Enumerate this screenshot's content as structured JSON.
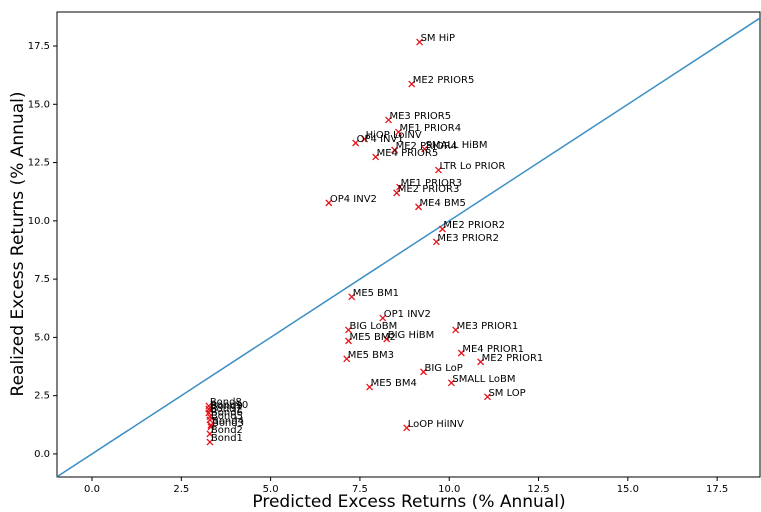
{
  "chart_data": {
    "type": "scatter",
    "xlabel": "Predicted Excess Returns (% Annual)",
    "ylabel": "Realized Excess Returns (% Annual)",
    "labels": [
      "SM HiP",
      "ME2 PRIOR5",
      "ME3 PRIOR5",
      "ME1 PRIOR4",
      "HiOP LoINV",
      "OP4 INV1",
      "ME2 PRIOR4",
      "SMALL HiBM",
      "ME4 PRIOR5",
      "LTR Lo PRIOR",
      "ME1 PRIOR3",
      "ME2 PRIOR3",
      "OP4 INV2",
      "ME4 BM5",
      "ME2 PRIOR2",
      "ME3 PRIOR2",
      "ME5 BM1",
      "OP1 INV2",
      "BIG LoBM",
      "BIG HiBM",
      "ME3 PRIOR1",
      "ME4 PRIOR1",
      "ME2 PRIOR1",
      "ME5 BM2",
      "ME5 BM3",
      "BIG LoP",
      "ME5 BM4",
      "SMALL LoBM",
      "SM LOP",
      "LoOP HiINV",
      "Bond8",
      "Bond10",
      "Bond9",
      "Bond7",
      "Bond6",
      "Bond5",
      "Bond4",
      "Bond3",
      "Bond2",
      "Bond1"
    ],
    "x": [
      9.17,
      8.95,
      8.3,
      8.58,
      7.63,
      7.38,
      8.47,
      9.31,
      7.94,
      9.7,
      8.61,
      8.53,
      6.63,
      9.14,
      9.81,
      9.64,
      7.27,
      8.14,
      7.18,
      8.25,
      10.18,
      10.34,
      10.88,
      7.18,
      7.13,
      9.28,
      7.77,
      10.06,
      11.07,
      8.81,
      3.27,
      3.27,
      3.3,
      3.27,
      3.3,
      3.3,
      3.33,
      3.33,
      3.3,
      3.3
    ],
    "y": [
      17.67,
      15.87,
      14.33,
      13.81,
      13.51,
      13.34,
      13.04,
      13.08,
      12.74,
      12.18,
      11.45,
      11.2,
      10.77,
      10.6,
      9.65,
      9.1,
      6.74,
      5.83,
      5.32,
      4.93,
      5.32,
      4.33,
      3.95,
      4.85,
      4.08,
      3.52,
      2.87,
      3.05,
      2.45,
      1.12,
      2.06,
      1.93,
      1.88,
      1.76,
      1.6,
      1.46,
      1.24,
      1.16,
      0.86,
      0.51
    ],
    "color": "#e8141c",
    "diagonal": true,
    "line_color": "#3a8fc4",
    "xlim": [
      -0.98,
      18.7
    ],
    "ylim": [
      -0.99,
      18.96
    ],
    "xticks": [
      {
        "value": 0,
        "label": "0.0"
      },
      {
        "value": 2.5,
        "label": "2.5"
      },
      {
        "value": 5,
        "label": "5.0"
      },
      {
        "value": 7.5,
        "label": "7.5"
      },
      {
        "value": 10,
        "label": "10.0"
      },
      {
        "value": 12.5,
        "label": "12.5"
      },
      {
        "value": 15,
        "label": "15.0"
      },
      {
        "value": 17.5,
        "label": "17.5"
      }
    ],
    "yticks": [
      {
        "value": 0,
        "label": "0.0"
      },
      {
        "value": 2.5,
        "label": "2.5"
      },
      {
        "value": 5,
        "label": "5.0"
      },
      {
        "value": 7.5,
        "label": "7.5"
      },
      {
        "value": 10,
        "label": "10.0"
      },
      {
        "value": 12.5,
        "label": "12.5"
      },
      {
        "value": 15,
        "label": "15.0"
      },
      {
        "value": 17.5,
        "label": "17.5"
      }
    ]
  }
}
